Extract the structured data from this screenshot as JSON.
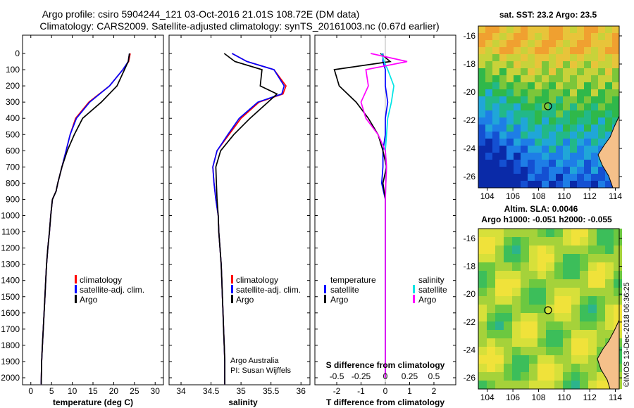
{
  "title": {
    "line1": "Argo profile: csiro 5904244_121 03-Oct-2016 21.01S 108.72E (DM data)",
    "line2": "Climatology: CARS2009. Satellite-adjusted climatology: synTS_20161003.nc (0.67d earlier)"
  },
  "y_ticks": [
    "0",
    "100",
    "200",
    "300",
    "400",
    "500",
    "600",
    "700",
    "800",
    "900",
    "1000",
    "1100",
    "1200",
    "1300",
    "1400",
    "1500",
    "1600",
    "1700",
    "1800",
    "1900",
    "2000"
  ],
  "watermark": "©IMOS 13-Dec-2018 06:36:25",
  "panel_temp": {
    "xlabel": "temperature (deg C)",
    "xticks": [
      "0",
      "5",
      "10",
      "15",
      "20",
      "25",
      "30"
    ],
    "legend": [
      "climatology",
      "satellite-adj. clim.",
      "Argo"
    ]
  },
  "panel_sal": {
    "xlabel": "salinity",
    "xticks": [
      "34",
      "34.5",
      "35",
      "35.5",
      "36"
    ],
    "legend": [
      "climatology",
      "satellite-adj. clim.",
      "Argo"
    ],
    "credit1": "Argo Australia",
    "credit2": "PI: Susan Wijffels"
  },
  "panel_diff": {
    "xlabel": "T difference from climatology",
    "xticks": [
      "-2",
      "-1",
      "0",
      "1",
      "2"
    ],
    "top_label": "S difference from climatology",
    "top_ticks": [
      "-0.5",
      "-0.25",
      "0",
      "0.25",
      "0.5"
    ],
    "legend_temp_title": "temperature",
    "legend_sal_title": "salinity",
    "legend_items_temp": [
      "satellite",
      "Argo"
    ],
    "legend_items_sal": [
      "satellite",
      "Argo"
    ]
  },
  "map_sst": {
    "title": "sat. SST: 23.2 Argo: 23.5",
    "lat_ticks": [
      "-16",
      "-18",
      "-20",
      "-22",
      "-24",
      "-26"
    ],
    "lon_ticks": [
      "104",
      "106",
      "108",
      "110",
      "112",
      "114"
    ]
  },
  "map_sla": {
    "title1": "Altim. SLA: 0.0046",
    "title2": "Argo h1000: -0.051 h2000: -0.055",
    "lat_ticks": [
      "-16",
      "-18",
      "-20",
      "-22",
      "-24",
      "-26"
    ],
    "lon_ticks": [
      "104",
      "106",
      "108",
      "110",
      "112",
      "114"
    ]
  },
  "colors": {
    "climatology": "#ff0000",
    "satellite": "#0000ff",
    "argo": "#000000",
    "sat_salinity": "#00e5e5",
    "argo_salinity": "#ff00ff"
  },
  "chart_data": [
    {
      "type": "line",
      "xlabel": "temperature (deg C)",
      "xlim": [
        -2,
        32
      ],
      "ylim": [
        2050,
        0
      ],
      "series": [
        {
          "name": "climatology",
          "x": [
            24,
            23.6,
            22.2,
            19,
            14,
            10.8,
            9.5,
            8.5,
            7.5,
            6.5,
            6.1,
            5.2,
            4.8,
            4.5,
            4.1,
            3.8,
            3.6,
            3.4,
            3.2,
            3.0,
            2.8,
            2.6,
            2.5
          ],
          "y": [
            0,
            50,
            100,
            200,
            300,
            400,
            500,
            600,
            700,
            800,
            850,
            900,
            1000,
            1100,
            1200,
            1300,
            1400,
            1500,
            1600,
            1700,
            1800,
            1900,
            2040
          ]
        },
        {
          "name": "satellite-adj. clim.",
          "x": [
            23.8,
            23.5,
            22.2,
            19,
            14.2,
            11,
            9.5,
            8.5,
            7.5,
            6.5,
            6.1,
            5.2,
            4.8,
            4.5,
            4.1,
            3.8,
            3.6,
            3.4,
            3.2,
            3.0,
            2.8,
            2.6,
            2.5
          ],
          "y": [
            0,
            50,
            100,
            200,
            300,
            400,
            500,
            600,
            700,
            800,
            850,
            900,
            1000,
            1100,
            1200,
            1300,
            1400,
            1500,
            1600,
            1700,
            1800,
            1900,
            2040
          ]
        },
        {
          "name": "Argo",
          "x": [
            23.8,
            23.5,
            22.6,
            20.8,
            17,
            12.5,
            10.5,
            8.8,
            7.5,
            6.5,
            6.1,
            5.2,
            4.8,
            4.5,
            4.1,
            3.8,
            3.6,
            3.4,
            3.2,
            3.0,
            2.8,
            2.6,
            2.5
          ],
          "y": [
            0,
            50,
            100,
            200,
            300,
            400,
            500,
            600,
            700,
            800,
            850,
            900,
            1000,
            1100,
            1200,
            1300,
            1400,
            1500,
            1600,
            1700,
            1800,
            1900,
            2040
          ]
        }
      ]
    },
    {
      "type": "line",
      "xlabel": "salinity",
      "xlim": [
        33.8,
        36.15
      ],
      "ylim": [
        2050,
        0
      ],
      "series": [
        {
          "name": "climatology",
          "x": [
            34.85,
            35.1,
            35.55,
            35.75,
            35.7,
            35.3,
            35.0,
            34.8,
            34.6,
            34.53,
            34.55,
            34.58,
            34.62,
            34.63,
            34.65,
            34.67,
            34.68,
            34.69,
            34.7,
            34.71,
            34.72,
            34.73,
            34.73
          ],
          "y": [
            0,
            50,
            100,
            200,
            250,
            300,
            400,
            500,
            600,
            700,
            800,
            900,
            1000,
            1100,
            1200,
            1300,
            1400,
            1500,
            1600,
            1700,
            1800,
            1900,
            2040
          ]
        },
        {
          "name": "satellite-adj. clim.",
          "x": [
            34.85,
            35.1,
            35.55,
            35.72,
            35.68,
            35.28,
            34.97,
            34.78,
            34.6,
            34.53,
            34.55,
            34.58,
            34.62,
            34.63,
            34.65,
            34.67,
            34.68,
            34.69,
            34.7,
            34.71,
            34.72,
            34.73,
            34.73
          ],
          "y": [
            0,
            50,
            100,
            200,
            250,
            300,
            400,
            500,
            600,
            700,
            800,
            900,
            1000,
            1100,
            1200,
            1300,
            1400,
            1500,
            1600,
            1700,
            1800,
            1900,
            2040
          ]
        },
        {
          "name": "Argo",
          "x": [
            34.72,
            34.9,
            35.35,
            35.32,
            35.6,
            35.45,
            35.15,
            34.88,
            34.66,
            34.58,
            34.59,
            34.6,
            34.62,
            34.63,
            34.65,
            34.67,
            34.68,
            34.69,
            34.7,
            34.71,
            34.72,
            34.73,
            34.73
          ],
          "y": [
            0,
            50,
            100,
            200,
            250,
            300,
            400,
            500,
            600,
            700,
            800,
            900,
            1000,
            1100,
            1200,
            1300,
            1400,
            1500,
            1600,
            1700,
            1800,
            1900,
            2040
          ]
        }
      ]
    },
    {
      "type": "line",
      "xlabel": "T difference from climatology",
      "xlim": [
        -2.9,
        2.9
      ],
      "top_axis": "S difference from climatology",
      "ylim": [
        2050,
        0
      ],
      "series": [
        {
          "name": "satellite",
          "x": [
            -0.1,
            -0.1,
            0.0,
            0.0,
            0.1,
            0.0,
            0.0,
            -0.1,
            -0.1,
            -0.15,
            0.0,
            0.0,
            0.0,
            0.0,
            0.0,
            0.0,
            0.0,
            0.0,
            0.0,
            0.0,
            0.0
          ],
          "y": [
            0,
            50,
            100,
            200,
            300,
            400,
            500,
            600,
            700,
            800,
            900,
            1000,
            1100,
            1200,
            1300,
            1400,
            1500,
            1600,
            1700,
            1800,
            2000
          ]
        },
        {
          "name": "Argo",
          "x": [
            -0.2,
            0.2,
            -2.1,
            -1.9,
            -1.2,
            -0.7,
            -0.3,
            -0.1,
            0.05,
            -0.1,
            0.0,
            0.0,
            0.0,
            0.0,
            0.0,
            0.0,
            0.0,
            0.0,
            0.0,
            0.0,
            0.0
          ],
          "y": [
            0,
            50,
            100,
            200,
            300,
            400,
            500,
            600,
            700,
            800,
            900,
            1000,
            1100,
            1200,
            1300,
            1400,
            1500,
            1600,
            1700,
            1800,
            2000
          ]
        },
        {
          "name": "salinity satellite",
          "x": [
            -0.15,
            -0.05,
            0.1,
            0.35,
            0.25,
            0.1,
            0.05,
            0.0,
            0.05,
            0.02,
            0.0,
            0.0,
            0.0,
            0.0,
            0.0,
            0.0,
            0.0,
            0.0,
            0.0,
            0.0,
            0.0
          ],
          "y": [
            0,
            50,
            100,
            200,
            300,
            400,
            500,
            600,
            700,
            800,
            900,
            1000,
            1100,
            1200,
            1300,
            1400,
            1500,
            1600,
            1700,
            1800,
            2000
          ]
        },
        {
          "name": "salinity Argo",
          "x": [
            -0.6,
            0.9,
            -0.8,
            -0.7,
            -1.0,
            -0.8,
            -0.3,
            0.0,
            0.05,
            0.02,
            0.0,
            0.0,
            0.0,
            0.0,
            0.0,
            0.0,
            0.0,
            0.0,
            0.0,
            0.0,
            0.0
          ],
          "y": [
            0,
            50,
            100,
            200,
            300,
            400,
            500,
            600,
            700,
            800,
            900,
            1000,
            1100,
            1200,
            1300,
            1400,
            1500,
            1600,
            1700,
            1800,
            2000
          ]
        }
      ]
    }
  ]
}
